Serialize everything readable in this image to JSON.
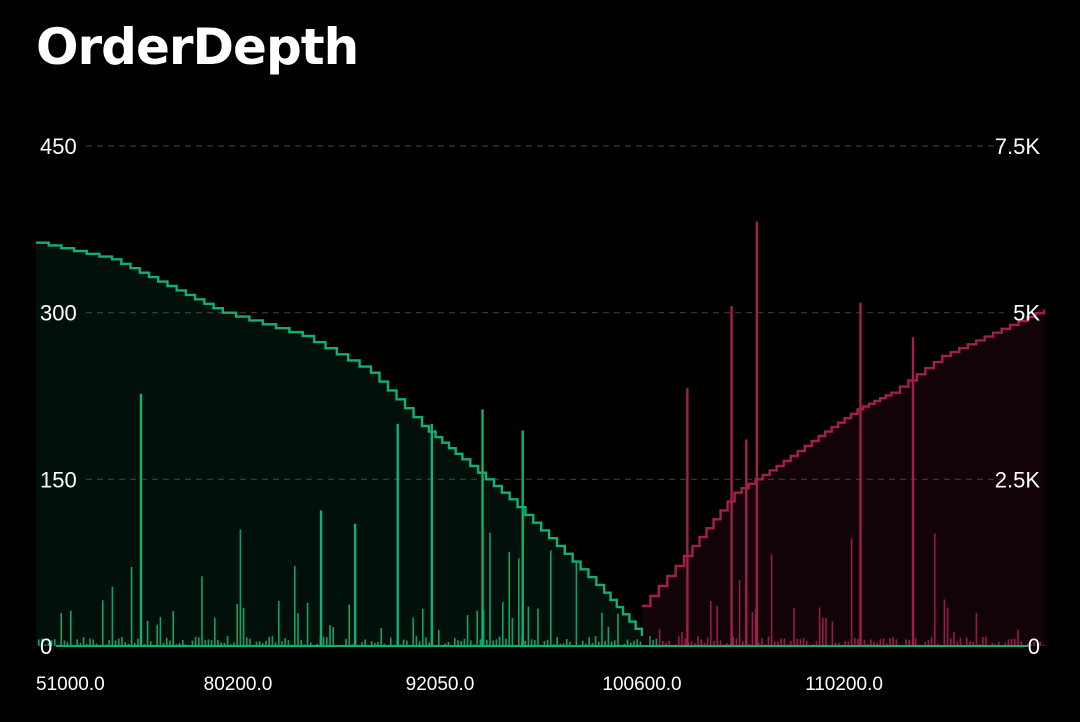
{
  "header": {
    "title": "OrderDepth"
  },
  "colors": {
    "bid": "#10b072",
    "ask": "#a3204a",
    "grid": "#3a3a3a"
  },
  "chart_data": {
    "type": "area",
    "left_axis": {
      "range": [
        0,
        450
      ],
      "ticks": [
        "0",
        "150",
        "300",
        "450"
      ],
      "values": [
        0,
        150,
        300,
        450
      ]
    },
    "right_axis": {
      "range": [
        0,
        7500
      ],
      "ticks": [
        "0",
        "2.5K",
        "5K",
        "7.5K"
      ],
      "values": [
        0,
        2500,
        5000,
        7500
      ]
    },
    "x_tick_labels": [
      "51000.0",
      "80200.0",
      "92050.0",
      "100600.0",
      "110200.0"
    ],
    "grid": true,
    "series": [
      {
        "side": "bid",
        "cumulative_depth": [
          {
            "x": 51000,
            "y": 6050
          },
          {
            "x": 62000,
            "y": 5800
          },
          {
            "x": 70000,
            "y": 5400
          },
          {
            "x": 78000,
            "y": 5000
          },
          {
            "x": 84000,
            "y": 4650
          },
          {
            "x": 88000,
            "y": 4100
          },
          {
            "x": 91000,
            "y": 3300
          },
          {
            "x": 93000,
            "y": 2800
          },
          {
            "x": 95000,
            "y": 2200
          },
          {
            "x": 97000,
            "y": 1500
          },
          {
            "x": 99000,
            "y": 800
          },
          {
            "x": 100600,
            "y": 150
          }
        ],
        "volume_spikes": [
          {
            "x": 66000,
            "y": 227
          },
          {
            "x": 89500,
            "y": 200
          },
          {
            "x": 91500,
            "y": 200
          },
          {
            "x": 93800,
            "y": 213
          },
          {
            "x": 95500,
            "y": 194
          },
          {
            "x": 85000,
            "y": 122
          },
          {
            "x": 87000,
            "y": 110
          }
        ]
      },
      {
        "side": "ask",
        "cumulative_depth": [
          {
            "x": 100600,
            "y": 600
          },
          {
            "x": 103000,
            "y": 1500
          },
          {
            "x": 105000,
            "y": 2300
          },
          {
            "x": 107000,
            "y": 2700
          },
          {
            "x": 109000,
            "y": 3150
          },
          {
            "x": 111000,
            "y": 3550
          },
          {
            "x": 113000,
            "y": 3800
          },
          {
            "x": 116000,
            "y": 4350
          },
          {
            "x": 119000,
            "y": 4700
          },
          {
            "x": 122000,
            "y": 5050
          }
        ],
        "volume_spikes": [
          {
            "x": 102700,
            "y": 232
          },
          {
            "x": 104800,
            "y": 306
          },
          {
            "x": 106000,
            "y": 382
          },
          {
            "x": 111100,
            "y": 309
          },
          {
            "x": 114200,
            "y": 278
          },
          {
            "x": 105500,
            "y": 186
          }
        ]
      }
    ]
  }
}
